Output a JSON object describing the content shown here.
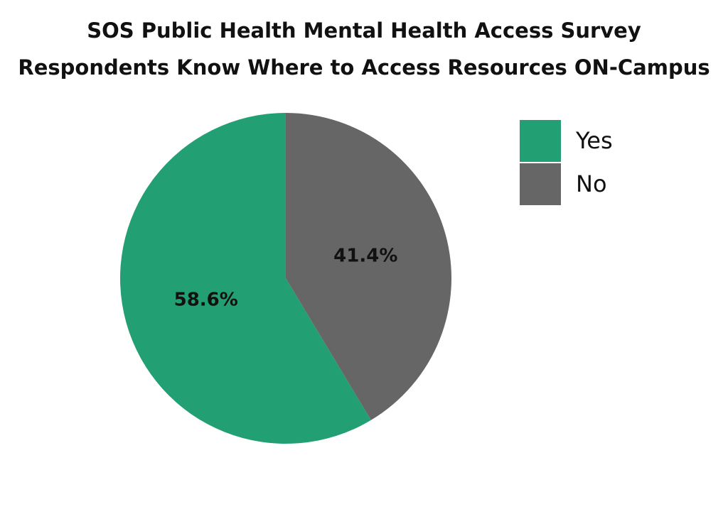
{
  "chart_data": {
    "type": "pie",
    "title": "SOS Public Health Mental Health Access Survey",
    "subtitle": "Respondents Know Where to Access Resources ON-Campus",
    "categories": [
      "Yes",
      "No"
    ],
    "values": [
      58.6,
      41.4
    ],
    "value_labels": [
      "58.6%",
      "41.4%"
    ],
    "colors": [
      "#239f74",
      "#666666"
    ],
    "legend": "upper right"
  }
}
